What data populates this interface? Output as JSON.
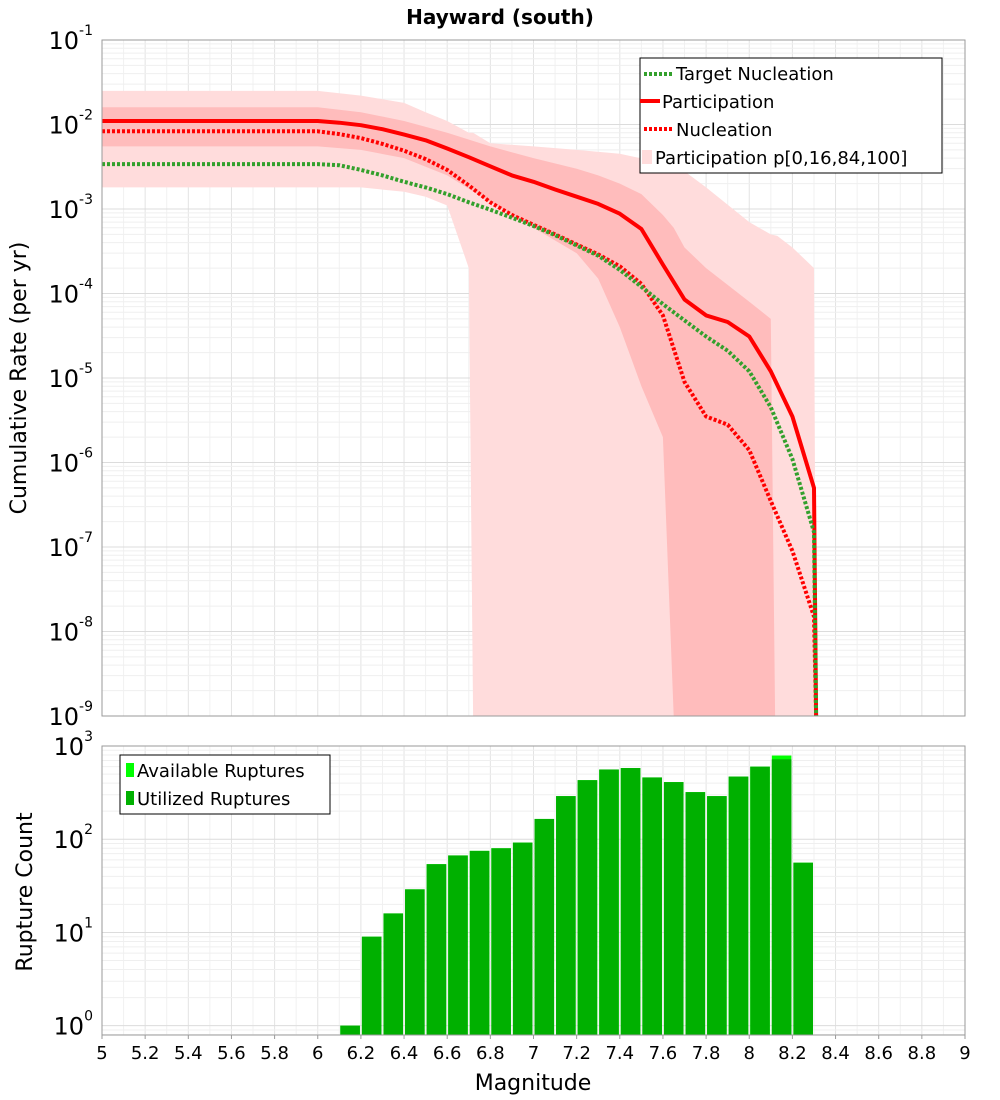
{
  "colors": {
    "participation": "#ff0000",
    "nucleation": "#ff0000",
    "target": "#33a02c",
    "band_outer": "#ffdcdc",
    "band_inner": "#ffbcbc",
    "available": "#00ff00",
    "utilized": "#00b000"
  },
  "chart_data": [
    {
      "type": "line",
      "title": "Hayward (south)",
      "xlabel": "Magnitude",
      "ylabel": "Cumulative Rate (per yr)",
      "xlim": [
        5,
        9
      ],
      "ylim_log10": [
        -9,
        -1
      ],
      "y_scale": "log",
      "x_tick_labels": [
        "5",
        "5.2",
        "5.4",
        "5.6",
        "5.8",
        "6",
        "6.2",
        "6.4",
        "6.6",
        "6.8",
        "7",
        "7.2",
        "7.4",
        "7.6",
        "7.8",
        "8",
        "8.2",
        "8.4",
        "8.6",
        "8.8",
        "9"
      ],
      "y_tick_exponents": [
        "-9",
        "-8",
        "-7",
        "-6",
        "-5",
        "-4",
        "-3",
        "-2",
        "-1"
      ],
      "legend_position": "top-right",
      "legend": [
        "Target Nucleation",
        "Participation",
        "Nucleation",
        "Participation p[0,16,84,100]"
      ],
      "bands": [
        {
          "name": "p0-p100",
          "x": [
            5.0,
            6.0,
            6.2,
            6.4,
            6.5,
            6.6,
            6.7,
            6.72,
            6.8,
            7.0,
            7.2,
            7.4,
            7.6,
            7.7,
            7.8,
            8.0,
            8.1,
            8.13,
            8.2,
            8.3,
            8.31
          ],
          "upper": [
            0.025,
            0.025,
            0.022,
            0.018,
            0.014,
            0.011,
            0.008,
            0.008,
            0.006,
            0.0055,
            0.005,
            0.0045,
            0.0035,
            0.0028,
            0.0018,
            0.0007,
            0.0005,
            0.00048,
            0.00035,
            0.0002,
            1e-09
          ],
          "lower": [
            0.0018,
            0.0018,
            0.0018,
            0.0016,
            0.0014,
            0.0011,
            0.0002,
            1e-09,
            1e-09,
            1e-09,
            1e-09,
            1e-09,
            1e-09,
            1e-09,
            1e-09,
            1e-09,
            1e-09,
            1e-09,
            1e-09,
            1e-09,
            1e-09
          ]
        },
        {
          "name": "p16-p84",
          "x": [
            5.0,
            6.0,
            6.2,
            6.4,
            6.6,
            6.8,
            7.0,
            7.2,
            7.3,
            7.4,
            7.5,
            7.6,
            7.65,
            7.7,
            7.8,
            8.0,
            8.1,
            8.12,
            8.2,
            8.31
          ],
          "upper": [
            0.016,
            0.016,
            0.014,
            0.011,
            0.008,
            0.0055,
            0.004,
            0.003,
            0.0025,
            0.002,
            0.0015,
            0.00085,
            0.0006,
            0.00035,
            0.0002,
            8e-05,
            5e-05,
            1e-09,
            1e-09,
            1e-09
          ],
          "lower": [
            0.0055,
            0.0055,
            0.005,
            0.004,
            0.0025,
            0.0012,
            0.0006,
            0.0003,
            0.00015,
            4e-05,
            8e-06,
            2e-06,
            1e-09,
            1e-09,
            1e-09,
            1e-09,
            1e-09,
            1e-09,
            1e-09,
            1e-09
          ]
        }
      ],
      "series": [
        {
          "name": "Target Nucleation",
          "style": "dotted",
          "x": [
            5.0,
            6.0,
            6.1,
            6.2,
            6.3,
            6.4,
            6.5,
            6.6,
            6.7,
            6.8,
            6.9,
            7.0,
            7.1,
            7.2,
            7.3,
            7.4,
            7.5,
            7.6,
            7.7,
            7.8,
            7.9,
            8.0,
            8.1,
            8.2,
            8.3,
            8.31
          ],
          "y": [
            0.0034,
            0.0034,
            0.0033,
            0.0029,
            0.0025,
            0.0021,
            0.0018,
            0.0015,
            0.0012,
            0.00098,
            0.00079,
            0.00063,
            0.00049,
            0.00037,
            0.00028,
            0.00019,
            0.00012,
            7.5e-05,
            4.8e-05,
            3.1e-05,
            2.1e-05,
            1.2e-05,
            4.5e-06,
            1.1e-06,
            1.5e-07,
            1e-09
          ]
        },
        {
          "name": "Participation",
          "style": "solid",
          "x": [
            5.0,
            6.0,
            6.1,
            6.2,
            6.3,
            6.4,
            6.5,
            6.6,
            6.7,
            6.8,
            6.9,
            7.0,
            7.1,
            7.2,
            7.3,
            7.4,
            7.5,
            7.6,
            7.7,
            7.8,
            7.9,
            8.0,
            8.1,
            8.2,
            8.3,
            8.31
          ],
          "y": [
            0.011,
            0.011,
            0.0105,
            0.0098,
            0.0088,
            0.0076,
            0.0065,
            0.0052,
            0.0041,
            0.0032,
            0.0025,
            0.0021,
            0.0017,
            0.0014,
            0.00115,
            0.00088,
            0.00058,
            0.00022,
            8.5e-05,
            5.5e-05,
            4.6e-05,
            3.1e-05,
            1.2e-05,
            3.5e-06,
            5e-07,
            1e-09
          ]
        },
        {
          "name": "Nucleation",
          "style": "dotted",
          "x": [
            5.0,
            6.0,
            6.1,
            6.2,
            6.3,
            6.4,
            6.5,
            6.6,
            6.7,
            6.8,
            6.9,
            7.0,
            7.1,
            7.2,
            7.3,
            7.4,
            7.5,
            7.6,
            7.7,
            7.8,
            7.9,
            8.0,
            8.1,
            8.2,
            8.3,
            8.31
          ],
          "y": [
            0.0083,
            0.0083,
            0.0077,
            0.0069,
            0.0059,
            0.0049,
            0.0039,
            0.0029,
            0.0019,
            0.0012,
            0.00085,
            0.00065,
            0.0005,
            0.00038,
            0.00029,
            0.00021,
            0.00013,
            5.5e-05,
            9e-06,
            3.5e-06,
            2.8e-06,
            1.4e-06,
            3.5e-07,
            9e-08,
            1.5e-08,
            1e-09
          ]
        }
      ]
    },
    {
      "type": "bar",
      "xlabel": "Magnitude",
      "ylabel": "Rupture Count",
      "xlim": [
        5,
        9
      ],
      "ylim_log10": [
        -0.1,
        3
      ],
      "y_scale": "log",
      "y_tick_exponents": [
        "0",
        "1",
        "2",
        "3"
      ],
      "legend_position": "top-left",
      "legend": [
        "Available Ruptures",
        "Utilized Ruptures"
      ],
      "bin_width": 0.1,
      "bin_centers": [
        6.15,
        6.25,
        6.35,
        6.45,
        6.55,
        6.65,
        6.75,
        6.85,
        6.95,
        7.05,
        7.15,
        7.25,
        7.35,
        7.45,
        7.55,
        7.65,
        7.75,
        7.85,
        7.95,
        8.05,
        8.15,
        8.25
      ],
      "series": [
        {
          "name": "Available Ruptures",
          "values": [
            1,
            9,
            16,
            29,
            54,
            67,
            75,
            80,
            92,
            165,
            290,
            430,
            560,
            580,
            460,
            410,
            320,
            290,
            470,
            600,
            790,
            56
          ]
        },
        {
          "name": "Utilized Ruptures",
          "values": [
            1,
            9,
            16,
            29,
            54,
            67,
            75,
            80,
            92,
            165,
            290,
            430,
            560,
            580,
            460,
            410,
            320,
            290,
            470,
            600,
            720,
            56
          ]
        }
      ]
    }
  ]
}
